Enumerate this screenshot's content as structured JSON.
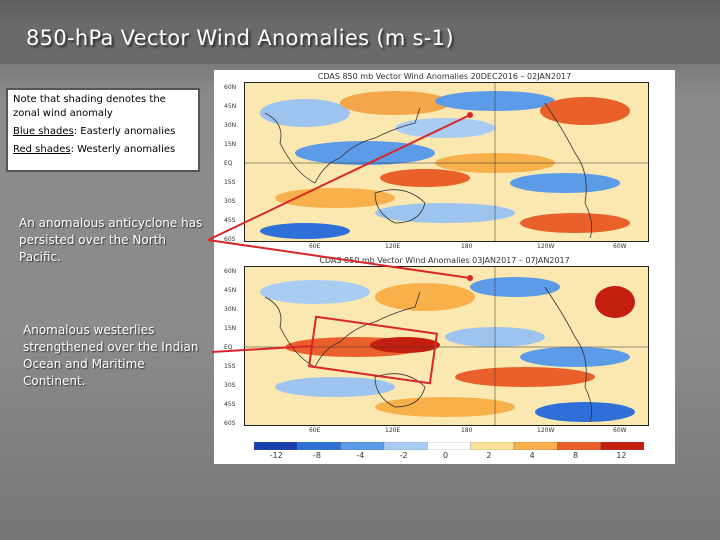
{
  "title": "850-hPa Vector Wind Anomalies (m s-1)",
  "note": {
    "line1": "Note that shading denotes the zonal wind anomaly",
    "blue_label": "Blue shades",
    "blue_rest": ": Easterly anomalies",
    "red_label": "Red shades",
    "red_rest": ": Westerly anomalies"
  },
  "callouts": {
    "anticyclone": "An anomalous anticyclone has persisted over the North Pacific.",
    "westerlies": "Anomalous westerlies strengthened over the Indian Ocean and Maritime Continent."
  },
  "maps": {
    "top_title": "CDAS 850 mb Vector Wind Anomalies    20DEC2016 – 02JAN2017",
    "bottom_title": "CDAS 850 mb Vector Wind Anomalies    03JAN2017 – 07JAN2017",
    "lat_labels": [
      "60N",
      "45N",
      "30N",
      "15N",
      "EQ",
      "15S",
      "30S",
      "45S",
      "60S"
    ],
    "lon_labels": [
      "60E",
      "120E",
      "180",
      "120W",
      "60W"
    ],
    "colorbar_labels": [
      "-12",
      "-8",
      "-4",
      "-2",
      "0",
      "2",
      "4",
      "8",
      "12"
    ],
    "colorbar_colors": [
      "#1a3fb0",
      "#2f6fd8",
      "#5b9be8",
      "#a9cdf2",
      "#ffffff",
      "#fde39a",
      "#f7b04a",
      "#e9602a",
      "#c41e10"
    ]
  },
  "colors": {
    "arrow": "#d8262a"
  }
}
